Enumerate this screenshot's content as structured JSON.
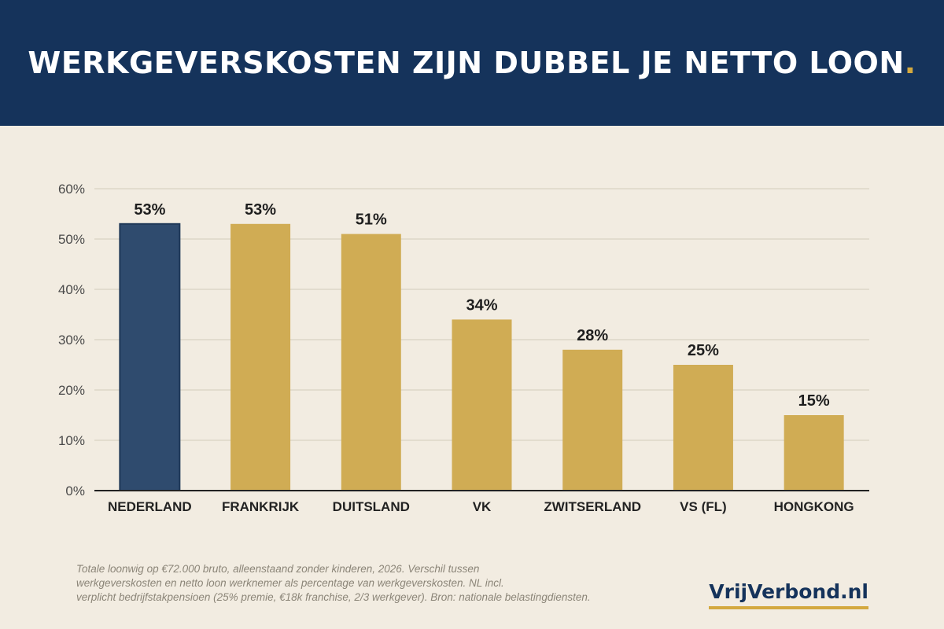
{
  "header": {
    "title": "WERKGEVERSKOSTEN ZIJN DUBBEL JE NETTO LOON",
    "title_dot": ".",
    "background": "#15335b",
    "accent": "#d4a93f"
  },
  "chart_data": {
    "type": "bar",
    "categories": [
      "NEDERLAND",
      "FRANKRIJK",
      "DUITSLAND",
      "VK",
      "ZWITSERLAND",
      "VS (FL)",
      "HONGKONG"
    ],
    "values": [
      53,
      53,
      51,
      34,
      28,
      25,
      15
    ],
    "value_labels": [
      "53%",
      "53%",
      "51%",
      "34%",
      "28%",
      "25%",
      "15%"
    ],
    "ylim": [
      0,
      60
    ],
    "yticks": [
      0,
      10,
      20,
      30,
      40,
      50,
      60
    ],
    "ytick_labels": [
      "0%",
      "10%",
      "20%",
      "30%",
      "40%",
      "50%",
      "60%"
    ],
    "grid": true,
    "highlight_index": 0,
    "colors": {
      "highlight": "#2f4b6e",
      "highlight_border": "#1f3858",
      "default": "#d0ac54"
    }
  },
  "footnote": {
    "lines": [
      "Totale loonwig op €72.000 bruto, alleenstaand zonder kinderen, 2026. Verschil tussen",
      "werkgeverskosten en netto loon werknemer als percentage van werkgeverskosten. NL incl.",
      "verplicht bedrijfstakpensioen (25% premie, €18k franchise, 2/3 werkgever). Bron: nationale belastingdiensten."
    ]
  },
  "brand": {
    "text": "VrijVerbond.nl"
  }
}
